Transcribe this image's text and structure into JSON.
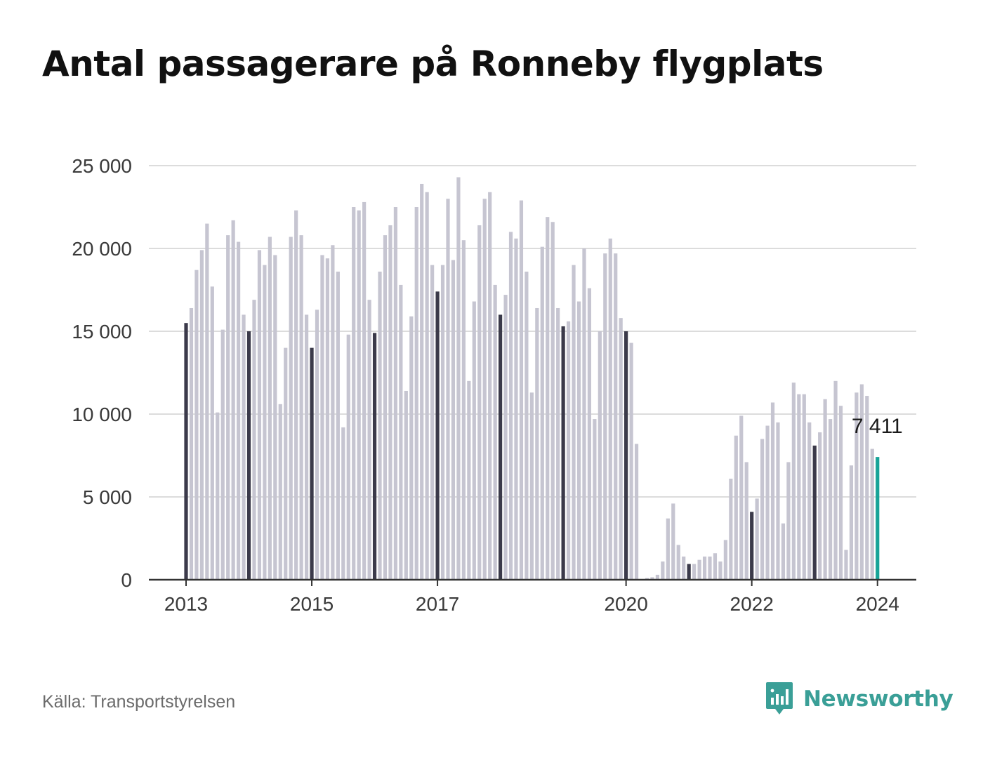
{
  "title": "Antal passagerare på Ronneby flygplats",
  "source": "Källa: Transportstyrelsen",
  "brand": {
    "name": "Newsworthy",
    "icon": "newsworthy-logo-icon",
    "color": "#3a9f97"
  },
  "colors": {
    "bar": "#c6c5d1",
    "january_bar": "#3b3a4a",
    "latest_bar": "#17a398",
    "grid": "#dcdcdc",
    "axis": "#333333"
  },
  "chart_data": {
    "type": "bar",
    "title": "Antal passagerare på Ronneby flygplats",
    "xlabel": "",
    "ylabel": "",
    "ylim": [
      0,
      25000
    ],
    "y_ticks": [
      0,
      5000,
      10000,
      15000,
      20000,
      25000
    ],
    "y_tick_labels": [
      "0",
      "5 000",
      "10 000",
      "15 000",
      "20 000",
      "25 000"
    ],
    "x_tick_labels": [
      "2013",
      "2015",
      "2017",
      "2020",
      "2022",
      "2024"
    ],
    "grid": true,
    "legend": "none",
    "frequency": "monthly",
    "start": "2013-01",
    "end": "2024-01",
    "highlight": "January of each year in dark; latest month in teal",
    "annotation": {
      "label": "7 411",
      "month": "2024-01"
    },
    "series": [
      {
        "year": 2013,
        "values": [
          15500,
          16400,
          18700,
          19900,
          21500,
          17700,
          10100,
          15100,
          20800,
          21700,
          20400,
          16000
        ]
      },
      {
        "year": 2014,
        "values": [
          15000,
          16900,
          19900,
          19000,
          20700,
          19600,
          10600,
          14000,
          20700,
          22300,
          20800,
          16000
        ]
      },
      {
        "year": 2015,
        "values": [
          14000,
          16300,
          19600,
          19400,
          20200,
          18600,
          9200,
          14800,
          22500,
          22300,
          22800,
          16900
        ]
      },
      {
        "year": 2016,
        "values": [
          14900,
          18600,
          20800,
          21400,
          22500,
          17800,
          11400,
          15900,
          22500,
          23900,
          23400,
          19000
        ]
      },
      {
        "year": 2017,
        "values": [
          17400,
          19000,
          23000,
          19300,
          24300,
          20500,
          12000,
          16800,
          21400,
          23000,
          23400,
          17800
        ]
      },
      {
        "year": 2018,
        "values": [
          16000,
          17200,
          21000,
          20600,
          22900,
          18600,
          11300,
          16400,
          20100,
          21900,
          21600,
          16400
        ]
      },
      {
        "year": 2019,
        "values": [
          15300,
          15600,
          19000,
          16800,
          20000,
          17600,
          9700,
          15000,
          19700,
          20600,
          19700,
          15800
        ]
      },
      {
        "year": 2020,
        "values": [
          15000,
          14300,
          8200,
          0,
          100,
          150,
          300,
          1100,
          3700,
          4600,
          2100,
          1400
        ]
      },
      {
        "year": 2021,
        "values": [
          950,
          950,
          1200,
          1400,
          1400,
          1600,
          1100,
          2400,
          6100,
          8700,
          9900,
          7100
        ]
      },
      {
        "year": 2022,
        "values": [
          4100,
          4900,
          8500,
          9300,
          10700,
          9500,
          3400,
          7100,
          11900,
          11200,
          11200,
          9500
        ]
      },
      {
        "year": 2023,
        "values": [
          8100,
          8900,
          10900,
          9700,
          12000,
          10500,
          1800,
          6900,
          11300,
          11800,
          11100,
          7900
        ]
      },
      {
        "year": 2024,
        "values": [
          7411
        ]
      }
    ]
  }
}
